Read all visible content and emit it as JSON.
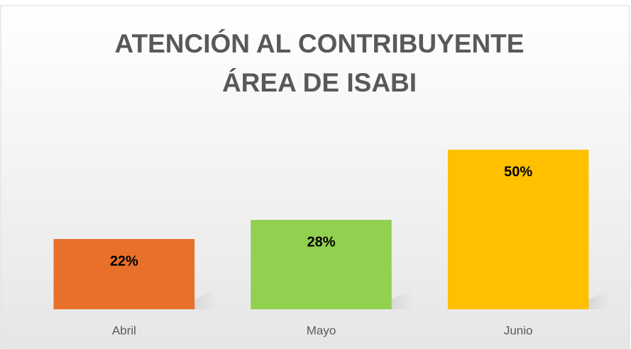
{
  "chart_data": {
    "type": "bar",
    "title": "ATENCIÓN AL CONTRIBUYENTE ÁREA DE ISABI",
    "categories": [
      "Abril",
      "Mayo",
      "Junio"
    ],
    "values": [
      22,
      28,
      50
    ],
    "value_labels": [
      "22%",
      "28%",
      "50%"
    ],
    "colors": [
      "#e8702a",
      "#92d050",
      "#ffc000"
    ],
    "ylim": [
      0,
      50
    ]
  }
}
